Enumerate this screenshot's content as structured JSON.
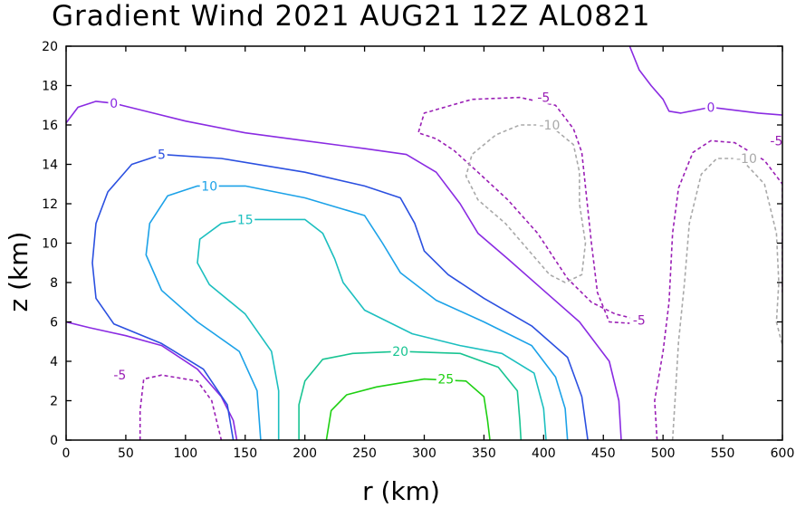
{
  "chart_data": {
    "type": "contour",
    "title": "Gradient Wind 2021 AUG21 12Z  AL0821",
    "xlabel": "r (km)",
    "ylabel": "z (km)",
    "xlim": [
      0,
      600
    ],
    "ylim": [
      0,
      20
    ],
    "x_ticks": [
      "0",
      "50",
      "100",
      "150",
      "200",
      "250",
      "300",
      "350",
      "400",
      "450",
      "500",
      "550",
      "600"
    ],
    "y_ticks": [
      "0",
      "2",
      "4",
      "6",
      "8",
      "10",
      "12",
      "14",
      "16",
      "18",
      "20"
    ],
    "grid": false,
    "contours": [
      {
        "level": "0",
        "color": "#8a2be2",
        "dashed": false,
        "lines": [
          [
            [
              0,
              16.1
            ],
            [
              10,
              16.9
            ],
            [
              25,
              17.2
            ],
            [
              40,
              17.1
            ],
            [
              60,
              16.8
            ],
            [
              100,
              16.2
            ],
            [
              150,
              15.6
            ],
            [
              200,
              15.2
            ],
            [
              250,
              14.8
            ],
            [
              285,
              14.5
            ],
            [
              310,
              13.6
            ],
            [
              330,
              12.0
            ],
            [
              345,
              10.5
            ],
            [
              370,
              9.2
            ],
            [
              400,
              7.6
            ],
            [
              430,
              6.0
            ],
            [
              455,
              4.0
            ],
            [
              463,
              2.0
            ],
            [
              465,
              0
            ]
          ],
          [
            [
              0,
              6.0
            ],
            [
              20,
              5.7
            ],
            [
              50,
              5.3
            ],
            [
              80,
              4.8
            ],
            [
              110,
              3.6
            ],
            [
              130,
              2.2
            ],
            [
              140,
              1.0
            ],
            [
              143,
              0
            ]
          ],
          [
            [
              472,
              20.0
            ],
            [
              480,
              18.8
            ],
            [
              490,
              18.0
            ],
            [
              500,
              17.3
            ],
            [
              505,
              16.7
            ],
            [
              515,
              16.6
            ],
            [
              540,
              16.9
            ],
            [
              580,
              16.6
            ],
            [
              600,
              16.5
            ]
          ]
        ],
        "labels": [
          [
            40,
            17.1,
            "0"
          ],
          [
            540,
            16.9,
            "0"
          ]
        ]
      },
      {
        "level": "5",
        "color": "#2b50e0",
        "dashed": false,
        "lines": [
          [
            [
              140,
              0
            ],
            [
              135,
              1.8
            ],
            [
              115,
              3.6
            ],
            [
              80,
              4.9
            ],
            [
              40,
              5.9
            ],
            [
              25,
              7.2
            ],
            [
              22,
              9.0
            ],
            [
              25,
              11.0
            ],
            [
              35,
              12.6
            ],
            [
              55,
              14.0
            ],
            [
              80,
              14.5
            ],
            [
              130,
              14.3
            ],
            [
              200,
              13.6
            ],
            [
              250,
              12.9
            ],
            [
              280,
              12.3
            ],
            [
              292,
              11.0
            ],
            [
              300,
              9.6
            ],
            [
              320,
              8.4
            ],
            [
              350,
              7.2
            ],
            [
              390,
              5.8
            ],
            [
              420,
              4.2
            ],
            [
              432,
              2.2
            ],
            [
              437,
              0
            ]
          ]
        ],
        "labels": [
          [
            80,
            14.5,
            "5"
          ]
        ]
      },
      {
        "level": "10",
        "color": "#1ca2e8",
        "dashed": false,
        "lines": [
          [
            [
              163,
              0
            ],
            [
              160,
              2.5
            ],
            [
              145,
              4.5
            ],
            [
              110,
              6.0
            ],
            [
              80,
              7.6
            ],
            [
              67,
              9.4
            ],
            [
              70,
              11.0
            ],
            [
              85,
              12.4
            ],
            [
              110,
              12.9
            ],
            [
              150,
              12.9
            ],
            [
              200,
              12.3
            ],
            [
              250,
              11.4
            ],
            [
              265,
              10.0
            ],
            [
              280,
              8.5
            ],
            [
              310,
              7.1
            ],
            [
              350,
              6.0
            ],
            [
              390,
              4.8
            ],
            [
              410,
              3.2
            ],
            [
              418,
              1.6
            ],
            [
              420,
              0
            ]
          ]
        ],
        "labels": [
          [
            120,
            12.9,
            "10"
          ]
        ]
      },
      {
        "level": "15",
        "color": "#1cbfbf",
        "dashed": false,
        "lines": [
          [
            [
              178,
              0
            ],
            [
              178,
              2.5
            ],
            [
              172,
              4.5
            ],
            [
              150,
              6.4
            ],
            [
              120,
              7.9
            ],
            [
              110,
              9.0
            ],
            [
              112,
              10.2
            ],
            [
              130,
              11.0
            ],
            [
              150,
              11.2
            ],
            [
              200,
              11.2
            ],
            [
              215,
              10.5
            ],
            [
              225,
              9.2
            ],
            [
              232,
              8.0
            ],
            [
              250,
              6.6
            ],
            [
              290,
              5.4
            ],
            [
              330,
              4.8
            ],
            [
              365,
              4.4
            ],
            [
              392,
              3.4
            ],
            [
              400,
              1.6
            ],
            [
              402,
              0
            ]
          ]
        ],
        "labels": [
          [
            150,
            11.2,
            "15"
          ]
        ]
      },
      {
        "level": "20",
        "color": "#18c492",
        "dashed": false,
        "lines": [
          [
            [
              195,
              0
            ],
            [
              195,
              1.8
            ],
            [
              200,
              3.0
            ],
            [
              215,
              4.1
            ],
            [
              240,
              4.4
            ],
            [
              280,
              4.5
            ],
            [
              330,
              4.4
            ],
            [
              362,
              3.7
            ],
            [
              378,
              2.5
            ],
            [
              380,
              1.0
            ],
            [
              381,
              0
            ]
          ]
        ],
        "labels": [
          [
            280,
            4.5,
            "20"
          ]
        ]
      },
      {
        "level": "25",
        "color": "#1ed012",
        "dashed": false,
        "lines": [
          [
            [
              218,
              0
            ],
            [
              222,
              1.5
            ],
            [
              235,
              2.3
            ],
            [
              260,
              2.7
            ],
            [
              300,
              3.1
            ],
            [
              335,
              3.0
            ],
            [
              350,
              2.2
            ],
            [
              353,
              1.0
            ],
            [
              355,
              0
            ]
          ]
        ],
        "labels": [
          [
            318,
            3.1,
            "25"
          ]
        ]
      },
      {
        "level": "-5",
        "color": "#9a1fb5",
        "dashed": true,
        "lines": [
          [
            [
              62,
              0
            ],
            [
              62,
              1.5
            ],
            [
              65,
              3.1
            ],
            [
              80,
              3.3
            ],
            [
              110,
              3.0
            ],
            [
              122,
              2.0
            ],
            [
              128,
              0.5
            ],
            [
              130,
              0
            ]
          ],
          [
            [
              480,
              6.1
            ],
            [
              460,
              6.4
            ],
            [
              440,
              7.0
            ],
            [
              420,
              8.2
            ],
            [
              395,
              10.5
            ],
            [
              370,
              12.2
            ],
            [
              345,
              13.6
            ],
            [
              325,
              14.7
            ],
            [
              310,
              15.3
            ],
            [
              295,
              15.6
            ],
            [
              300,
              16.6
            ],
            [
              340,
              17.3
            ],
            [
              380,
              17.4
            ],
            [
              410,
              17.0
            ],
            [
              425,
              15.8
            ],
            [
              432,
              14.6
            ],
            [
              440,
              10.0
            ],
            [
              445,
              7.5
            ],
            [
              455,
              6.0
            ],
            [
              480,
              5.9
            ]
          ],
          [
            [
              495,
              0
            ],
            [
              493,
              2.0
            ],
            [
              500,
              4.5
            ],
            [
              505,
              7.0
            ],
            [
              508,
              10.5
            ],
            [
              513,
              12.8
            ],
            [
              525,
              14.6
            ],
            [
              540,
              15.2
            ],
            [
              560,
              15.1
            ],
            [
              585,
              14.2
            ],
            [
              600,
              13.0
            ],
            [
              600,
              7.5
            ]
          ]
        ],
        "labels": [
          [
            45,
            3.3,
            "-5"
          ],
          [
            400,
            17.4,
            "-5"
          ],
          [
            480,
            6.1,
            "-5"
          ],
          [
            595,
            15.2,
            "-5"
          ]
        ]
      },
      {
        "level": "-10",
        "color": "#a9a9a9",
        "dashed": true,
        "lines": [
          [
            [
              418,
              8.0
            ],
            [
              405,
              8.4
            ],
            [
              385,
              9.8
            ],
            [
              368,
              11.0
            ],
            [
              345,
              12.2
            ],
            [
              335,
              13.4
            ],
            [
              340,
              14.5
            ],
            [
              360,
              15.5
            ],
            [
              380,
              16.0
            ],
            [
              405,
              16.0
            ],
            [
              425,
              15.0
            ],
            [
              430,
              13.6
            ],
            [
              430,
              12.0
            ],
            [
              435,
              10.0
            ],
            [
              432,
              8.4
            ],
            [
              418,
              8.0
            ]
          ],
          [
            [
              508,
              0
            ],
            [
              510,
              2.0
            ],
            [
              513,
              5.0
            ],
            [
              518,
              8.0
            ],
            [
              522,
              11.0
            ],
            [
              532,
              13.5
            ],
            [
              545,
              14.3
            ],
            [
              565,
              14.3
            ],
            [
              585,
              13.0
            ],
            [
              595,
              10.5
            ],
            [
              597,
              8.0
            ],
            [
              595,
              6.0
            ],
            [
              600,
              4.8
            ]
          ]
        ],
        "labels": [
          [
            405,
            16.0,
            "-10"
          ],
          [
            570,
            14.3,
            "-10"
          ]
        ]
      }
    ]
  }
}
